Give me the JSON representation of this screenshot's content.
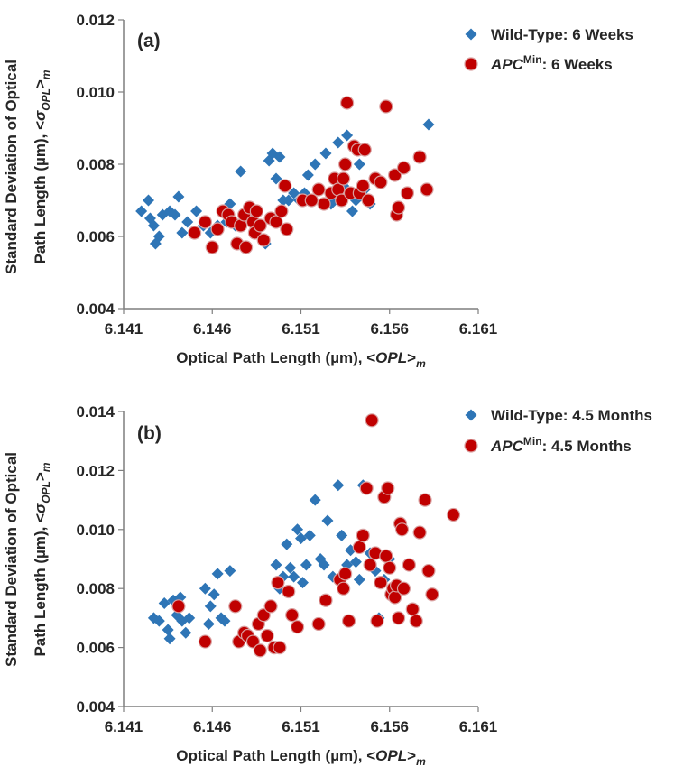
{
  "colors": {
    "wild_type": "#2E75B6",
    "apc_min": "#C00000",
    "apc_min_edge": "#d9a0a0",
    "axis": "#7f7f7f",
    "text": "#262626"
  },
  "chart_data": [
    {
      "type": "scatter",
      "panel_label": "(a)",
      "xlabel": {
        "main": "Optical Path Length (µm), <",
        "italic": "OPL",
        "close": ">",
        "sub": "m"
      },
      "ylabel": {
        "line1": "Standard Deviation of Optical",
        "line2_main": "Path Length (µm), <",
        "sigma": "σ",
        "sigma_sub": "OPL",
        "close": ">",
        "sub": "m"
      },
      "xlim": [
        6.141,
        6.161
      ],
      "ylim": [
        0.004,
        0.012
      ],
      "xticks": [
        "6.141",
        "6.146",
        "6.151",
        "6.156",
        "6.161"
      ],
      "yticks": [
        "0.004",
        "0.006",
        "0.008",
        "0.010",
        "0.012"
      ],
      "grid": false,
      "legend_position": "top-right",
      "series": [
        {
          "name_main": "Wild-Type:",
          "name_sup": "",
          "name_rest": "6 Weeks",
          "marker": "diamond",
          "points": [
            [
              6.142,
              0.0067
            ],
            [
              6.1424,
              0.007
            ],
            [
              6.1425,
              0.0065
            ],
            [
              6.1427,
              0.0063
            ],
            [
              6.1428,
              0.0058
            ],
            [
              6.143,
              0.006
            ],
            [
              6.1432,
              0.0066
            ],
            [
              6.1436,
              0.0067
            ],
            [
              6.1439,
              0.0066
            ],
            [
              6.1441,
              0.0071
            ],
            [
              6.1443,
              0.0061
            ],
            [
              6.1446,
              0.0064
            ],
            [
              6.1449,
              0.0061
            ],
            [
              6.1451,
              0.0067
            ],
            [
              6.1455,
              0.0063
            ],
            [
              6.1459,
              0.0061
            ],
            [
              6.1463,
              0.0063
            ],
            [
              6.1466,
              0.0067
            ],
            [
              6.1468,
              0.0064
            ],
            [
              6.147,
              0.0069
            ],
            [
              6.1473,
              0.0063
            ],
            [
              6.1476,
              0.0078
            ],
            [
              6.1478,
              0.0064
            ],
            [
              6.1481,
              0.0066
            ],
            [
              6.1484,
              0.0064
            ],
            [
              6.149,
              0.0058
            ],
            [
              6.1492,
              0.0081
            ],
            [
              6.1494,
              0.0083
            ],
            [
              6.1496,
              0.0076
            ],
            [
              6.1498,
              0.0082
            ],
            [
              6.15,
              0.007
            ],
            [
              6.1503,
              0.007
            ],
            [
              6.1506,
              0.0072
            ],
            [
              6.1509,
              0.007
            ],
            [
              6.1512,
              0.0072
            ],
            [
              6.1514,
              0.0077
            ],
            [
              6.1518,
              0.008
            ],
            [
              6.1521,
              0.0073
            ],
            [
              6.1524,
              0.0083
            ],
            [
              6.1527,
              0.0069
            ],
            [
              6.1529,
              0.007
            ],
            [
              6.1531,
              0.0086
            ],
            [
              6.1534,
              0.0074
            ],
            [
              6.1536,
              0.0088
            ],
            [
              6.1539,
              0.0067
            ],
            [
              6.1541,
              0.007
            ],
            [
              6.1543,
              0.008
            ],
            [
              6.1546,
              0.0073
            ],
            [
              6.1549,
              0.0069
            ],
            [
              6.1582,
              0.0091
            ]
          ]
        },
        {
          "name_main": "APC",
          "name_sup": "Min",
          "name_rest": ": 6 Weeks",
          "marker": "circle",
          "points": [
            [
              6.145,
              0.0061
            ],
            [
              6.1456,
              0.0064
            ],
            [
              6.146,
              0.0057
            ],
            [
              6.1463,
              0.0062
            ],
            [
              6.1466,
              0.0067
            ],
            [
              6.1469,
              0.0066
            ],
            [
              6.1471,
              0.0064
            ],
            [
              6.1474,
              0.0058
            ],
            [
              6.1476,
              0.0063
            ],
            [
              6.1478,
              0.0066
            ],
            [
              6.1479,
              0.0057
            ],
            [
              6.1481,
              0.0068
            ],
            [
              6.1483,
              0.0064
            ],
            [
              6.1484,
              0.0061
            ],
            [
              6.1485,
              0.0067
            ],
            [
              6.1487,
              0.0063
            ],
            [
              6.1489,
              0.0059
            ],
            [
              6.1493,
              0.0065
            ],
            [
              6.1496,
              0.0064
            ],
            [
              6.1499,
              0.0067
            ],
            [
              6.1501,
              0.0074
            ],
            [
              6.1502,
              0.0062
            ],
            [
              6.1511,
              0.007
            ],
            [
              6.1516,
              0.007
            ],
            [
              6.152,
              0.0073
            ],
            [
              6.1523,
              0.0069
            ],
            [
              6.1527,
              0.0072
            ],
            [
              6.1529,
              0.0076
            ],
            [
              6.1531,
              0.0073
            ],
            [
              6.1533,
              0.007
            ],
            [
              6.1534,
              0.0076
            ],
            [
              6.1535,
              0.008
            ],
            [
              6.1536,
              0.0097
            ],
            [
              6.1538,
              0.0072
            ],
            [
              6.154,
              0.0085
            ],
            [
              6.1542,
              0.0084
            ],
            [
              6.1543,
              0.0072
            ],
            [
              6.1545,
              0.0074
            ],
            [
              6.1546,
              0.0084
            ],
            [
              6.1548,
              0.007
            ],
            [
              6.1552,
              0.0076
            ],
            [
              6.1555,
              0.0075
            ],
            [
              6.1558,
              0.0096
            ],
            [
              6.1563,
              0.0077
            ],
            [
              6.1564,
              0.0066
            ],
            [
              6.1565,
              0.0068
            ],
            [
              6.1568,
              0.0079
            ],
            [
              6.157,
              0.0072
            ],
            [
              6.1577,
              0.0082
            ],
            [
              6.1581,
              0.0073
            ]
          ]
        }
      ]
    },
    {
      "type": "scatter",
      "panel_label": "(b)",
      "xlabel": {
        "main": "Optical Path Length (µm), <",
        "italic": "OPL",
        "close": ">",
        "sub": "m"
      },
      "ylabel": {
        "line1": "Standard Deviation of Optical",
        "line2_main": "Path Length (µm), <",
        "sigma": "σ",
        "sigma_sub": "OPL",
        "close": ">",
        "sub": "m"
      },
      "xlim": [
        6.141,
        6.161
      ],
      "ylim": [
        0.004,
        0.014
      ],
      "xticks": [
        "6.141",
        "6.146",
        "6.151",
        "6.156",
        "6.161"
      ],
      "yticks": [
        "0.004",
        "0.006",
        "0.008",
        "0.010",
        "0.012",
        "0.014"
      ],
      "grid": false,
      "legend_position": "top-right",
      "series": [
        {
          "name_main": "Wild-Type:",
          "name_sup": "",
          "name_rest": "4.5 Months",
          "marker": "diamond",
          "points": [
            [
              6.1427,
              0.007
            ],
            [
              6.143,
              0.0069
            ],
            [
              6.1433,
              0.0075
            ],
            [
              6.1435,
              0.0066
            ],
            [
              6.1436,
              0.0063
            ],
            [
              6.1438,
              0.0076
            ],
            [
              6.144,
              0.0071
            ],
            [
              6.1442,
              0.0077
            ],
            [
              6.1443,
              0.0069
            ],
            [
              6.1445,
              0.0065
            ],
            [
              6.1447,
              0.007
            ],
            [
              6.1456,
              0.008
            ],
            [
              6.1458,
              0.0068
            ],
            [
              6.1459,
              0.0074
            ],
            [
              6.1461,
              0.0078
            ],
            [
              6.1463,
              0.0085
            ],
            [
              6.1465,
              0.007
            ],
            [
              6.1467,
              0.0069
            ],
            [
              6.147,
              0.0086
            ],
            [
              6.1496,
              0.0088
            ],
            [
              6.1498,
              0.008
            ],
            [
              6.15,
              0.0084
            ],
            [
              6.1502,
              0.0095
            ],
            [
              6.1504,
              0.0087
            ],
            [
              6.1506,
              0.0084
            ],
            [
              6.1508,
              0.01
            ],
            [
              6.151,
              0.0097
            ],
            [
              6.1511,
              0.0082
            ],
            [
              6.1513,
              0.0088
            ],
            [
              6.1515,
              0.0098
            ],
            [
              6.1518,
              0.011
            ],
            [
              6.1521,
              0.009
            ],
            [
              6.1523,
              0.0088
            ],
            [
              6.1525,
              0.0103
            ],
            [
              6.1528,
              0.0084
            ],
            [
              6.1531,
              0.0115
            ],
            [
              6.1533,
              0.0098
            ],
            [
              6.1536,
              0.0088
            ],
            [
              6.1538,
              0.0093
            ],
            [
              6.1541,
              0.0089
            ],
            [
              6.1543,
              0.0083
            ],
            [
              6.1545,
              0.0115
            ],
            [
              6.1549,
              0.0092
            ],
            [
              6.1552,
              0.0086
            ],
            [
              6.1554,
              0.007
            ],
            [
              6.1557,
              0.0083
            ],
            [
              6.156,
              0.009
            ]
          ]
        },
        {
          "name_main": "APC",
          "name_sup": "Min",
          "name_rest": ": 4.5 Months",
          "marker": "circle",
          "points": [
            [
              6.1441,
              0.0074
            ],
            [
              6.1456,
              0.0062
            ],
            [
              6.1473,
              0.0074
            ],
            [
              6.1475,
              0.0062
            ],
            [
              6.1478,
              0.0065
            ],
            [
              6.148,
              0.0064
            ],
            [
              6.1483,
              0.0062
            ],
            [
              6.1486,
              0.0068
            ],
            [
              6.1487,
              0.0059
            ],
            [
              6.1489,
              0.0071
            ],
            [
              6.1491,
              0.0064
            ],
            [
              6.1493,
              0.0074
            ],
            [
              6.1495,
              0.006
            ],
            [
              6.1497,
              0.0082
            ],
            [
              6.1498,
              0.006
            ],
            [
              6.1503,
              0.0079
            ],
            [
              6.1505,
              0.0071
            ],
            [
              6.1508,
              0.0067
            ],
            [
              6.152,
              0.0068
            ],
            [
              6.1524,
              0.0076
            ],
            [
              6.1532,
              0.0083
            ],
            [
              6.1534,
              0.008
            ],
            [
              6.1535,
              0.0085
            ],
            [
              6.1537,
              0.0069
            ],
            [
              6.1543,
              0.0094
            ],
            [
              6.1545,
              0.0098
            ],
            [
              6.1547,
              0.0114
            ],
            [
              6.1549,
              0.0088
            ],
            [
              6.155,
              0.0137
            ],
            [
              6.1552,
              0.0092
            ],
            [
              6.1553,
              0.0069
            ],
            [
              6.1555,
              0.0082
            ],
            [
              6.1557,
              0.0111
            ],
            [
              6.1558,
              0.0091
            ],
            [
              6.1559,
              0.0114
            ],
            [
              6.156,
              0.0087
            ],
            [
              6.1561,
              0.0078
            ],
            [
              6.1562,
              0.008
            ],
            [
              6.1563,
              0.0077
            ],
            [
              6.1564,
              0.0081
            ],
            [
              6.1565,
              0.007
            ],
            [
              6.1566,
              0.0102
            ],
            [
              6.1567,
              0.01
            ],
            [
              6.1568,
              0.008
            ],
            [
              6.1571,
              0.0088
            ],
            [
              6.1573,
              0.0073
            ],
            [
              6.1575,
              0.0069
            ],
            [
              6.1577,
              0.0099
            ],
            [
              6.158,
              0.011
            ],
            [
              6.1582,
              0.0086
            ],
            [
              6.1584,
              0.0078
            ],
            [
              6.1596,
              0.0105
            ]
          ]
        }
      ]
    }
  ]
}
